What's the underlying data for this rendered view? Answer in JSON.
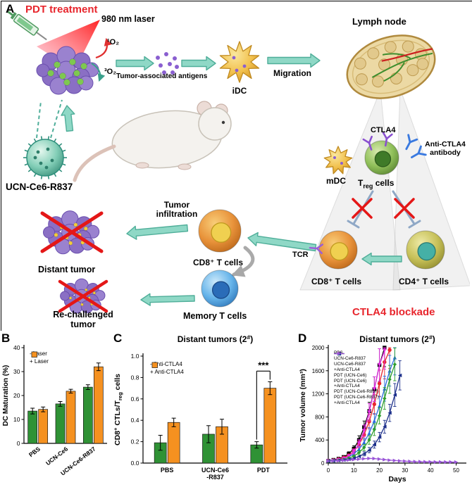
{
  "figure": {
    "panel_labels": {
      "A": "A",
      "B": "B",
      "C": "C",
      "D": "D"
    }
  },
  "colors": {
    "accent_red": "#e8262d",
    "arrow_teal": "#8fd8c6",
    "bar_green": "#2f9235",
    "bar_orange": "#f59120"
  },
  "panelA": {
    "pdt_treatment": "PDT treatment",
    "laser_label": "980 nm laser",
    "singlet_oxygen": "¹O₂",
    "triplet_oxygen": "³O₂",
    "tumor_antigens": "Tumor-associated antigens",
    "idc": "iDC",
    "migration": "Migration",
    "lymph_node": "Lymph node",
    "ctla4": "CTLA4",
    "anti_ctla4_antibody": "Anti-CTLA4\nantibody",
    "mdc": "mDC",
    "treg_prefix": "T",
    "treg_sub": "reg",
    "treg_suffix": " cells",
    "nanoparticle": "UCN-Ce6-R837",
    "tumor_infiltration": "Tumor\ninfiltration",
    "distant_tumor": "Distant tumor",
    "cd8_t_cells_mid": "CD8⁺ T cells",
    "tcr": "TCR",
    "cd8_t_cells_right": "CD8⁺ T cells",
    "cd4_t_cells": "CD4⁺ T cells",
    "memory_t_cells": "Memory T cells",
    "rechallenged_tumor": "Re-challenged\ntumor",
    "ctla4_blockade": "CTLA4 blockade"
  },
  "chart_data": [
    {
      "id": "B",
      "type": "bar",
      "title": "",
      "ylabel": "DC Maturation (%)",
      "ylim": [
        0,
        40
      ],
      "yticks": [
        0,
        10,
        20,
        30,
        40
      ],
      "categories": [
        "PBS",
        "UCN-Ce6",
        "UCN-Ce6-R837"
      ],
      "series": [
        {
          "name": "- Laser",
          "color": "#2f9235",
          "values": [
            13.5,
            16.5,
            23.5
          ],
          "errors": [
            1.2,
            1.0,
            1.0
          ]
        },
        {
          "name": "+ Laser",
          "color": "#f59120",
          "values": [
            14.2,
            21.8,
            32.0
          ],
          "errors": [
            1.0,
            0.8,
            1.6
          ]
        }
      ],
      "legend_position": "top-left"
    },
    {
      "id": "C",
      "type": "bar",
      "title": "Distant tumors (2^#^)",
      "ylabel": "CD8^+^ CTLs/T~reg~ cells",
      "ylim": [
        0,
        1.0
      ],
      "yticks": [
        0,
        0.2,
        0.4,
        0.6,
        0.8,
        1.0
      ],
      "categories": [
        "PBS",
        "UCN-Ce6\n-R837",
        "PDT"
      ],
      "series": [
        {
          "name": "- Anti-CTLA4",
          "color": "#2f9235",
          "values": [
            0.19,
            0.27,
            0.17
          ],
          "errors": [
            0.07,
            0.08,
            0.03
          ]
        },
        {
          "name": "+ Anti-CTLA4",
          "color": "#f59120",
          "values": [
            0.38,
            0.34,
            0.7
          ],
          "errors": [
            0.04,
            0.07,
            0.06
          ]
        }
      ],
      "significance": {
        "group_index": 2,
        "label": "***"
      },
      "legend_position": "top-left"
    },
    {
      "id": "D",
      "type": "line",
      "title": "Distant tumors (2^#^)",
      "xlabel": "Days",
      "ylabel": "Tumor volume (mm³)",
      "xlim": [
        0,
        54
      ],
      "xticks": [
        0,
        10,
        20,
        30,
        40,
        50
      ],
      "ylim": [
        0,
        2000
      ],
      "yticks": [
        0,
        400,
        800,
        1200,
        1600,
        2000
      ],
      "error_bars_note": "error bars shown in figure",
      "series": [
        {
          "name": "PBS",
          "color": "#000000",
          "marker": "square",
          "x": [
            0,
            2,
            4,
            6,
            8,
            10,
            12,
            14,
            16,
            18,
            20,
            22
          ],
          "y": [
            40,
            55,
            75,
            105,
            160,
            250,
            400,
            620,
            900,
            1280,
            1700,
            2000
          ]
        },
        {
          "name": "UCN-Ce6-R837",
          "color": "#e8262d",
          "marker": "circle",
          "x": [
            0,
            2,
            4,
            6,
            8,
            10,
            12,
            14,
            16,
            18,
            20,
            22,
            24
          ],
          "y": [
            40,
            50,
            68,
            95,
            135,
            205,
            320,
            490,
            720,
            1020,
            1380,
            1750,
            1960
          ]
        },
        {
          "name": "UCN-Ce6-R837\n+Anti-CTLA4",
          "color": "#2b6cdf",
          "marker": "triangle-up",
          "x": [
            0,
            2,
            4,
            6,
            8,
            10,
            12,
            14,
            16,
            18,
            20,
            22,
            24,
            26
          ],
          "y": [
            40,
            48,
            60,
            80,
            110,
            160,
            240,
            360,
            520,
            730,
            990,
            1290,
            1600,
            1830
          ]
        },
        {
          "name": "PDT (UCN-Ce6)",
          "color": "#e62ee6",
          "marker": "triangle-down",
          "x": [
            0,
            2,
            4,
            6,
            8,
            10,
            12,
            14,
            16,
            18,
            20,
            22
          ],
          "y": [
            35,
            42,
            55,
            78,
            120,
            200,
            340,
            560,
            880,
            1280,
            1700,
            1950
          ]
        },
        {
          "name": "PDT (UCN-Ce6)\n+Anti-CTLA4",
          "color": "#2e9e2e",
          "marker": "diamond",
          "x": [
            0,
            2,
            4,
            6,
            8,
            10,
            12,
            14,
            16,
            18,
            20,
            22,
            24,
            26
          ],
          "y": [
            35,
            40,
            48,
            62,
            85,
            120,
            180,
            270,
            400,
            580,
            820,
            1120,
            1450,
            1710
          ]
        },
        {
          "name": "PDT (UCN-Ce6-R837)",
          "color": "#1c2f8a",
          "marker": "triangle-left",
          "x": [
            0,
            2,
            4,
            6,
            8,
            10,
            12,
            14,
            16,
            18,
            20,
            22,
            24,
            26,
            28
          ],
          "y": [
            35,
            38,
            44,
            52,
            65,
            85,
            115,
            160,
            225,
            320,
            450,
            630,
            870,
            1180,
            1520
          ]
        },
        {
          "name": "PDT (UCN-Ce6-R837)\n+Anti-CTLA4",
          "color": "#9a55d8",
          "marker": "triangle-right",
          "x": [
            0,
            2,
            4,
            6,
            8,
            10,
            12,
            14,
            16,
            18,
            20,
            22,
            24,
            26,
            28,
            30,
            32,
            34,
            36,
            38,
            40,
            42,
            44,
            46,
            48,
            50
          ],
          "y": [
            35,
            38,
            40,
            45,
            52,
            60,
            68,
            75,
            80,
            78,
            70,
            60,
            50,
            44,
            38,
            33,
            29,
            26,
            24,
            22,
            21,
            20,
            19,
            18,
            18,
            17
          ]
        }
      ],
      "legend_position": "top-left"
    }
  ]
}
